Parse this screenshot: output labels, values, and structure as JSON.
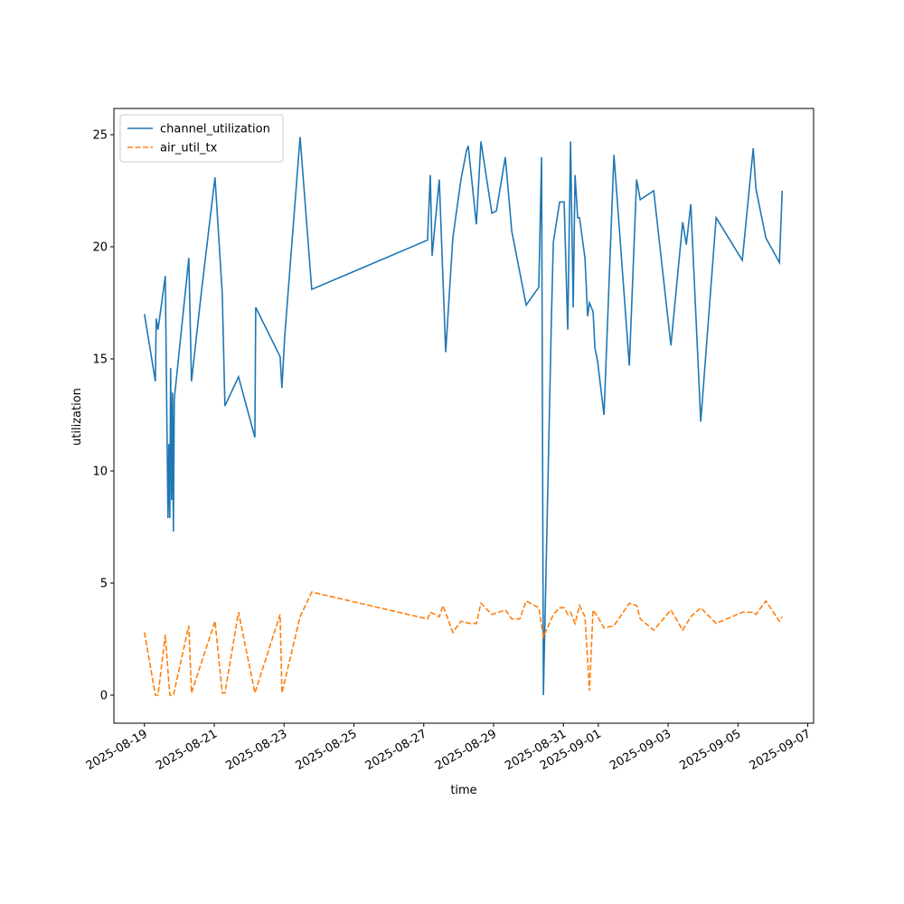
{
  "chart_data": {
    "type": "line",
    "xlabel": "time",
    "ylabel": "utilization",
    "xlim": [
      "2025-08-18T03:00",
      "2025-09-07T04:00"
    ],
    "xticks": [
      "2025-08-19",
      "2025-08-21",
      "2025-08-23",
      "2025-08-25",
      "2025-08-27",
      "2025-08-29",
      "2025-08-31",
      "2025-09-01",
      "2025-09-03",
      "2025-09-05",
      "2025-09-07"
    ],
    "ylim": [
      -1.25,
      26.17
    ],
    "yticks": [
      0,
      5,
      10,
      15,
      20,
      25
    ],
    "legend": "upper left",
    "series": [
      {
        "name": "channel_utilization",
        "color": "#1f77b4",
        "linestyle": "solid",
        "x": [
          "2025-08-19T00:00",
          "2025-08-19T07:30",
          "2025-08-19T08:05",
          "2025-08-19T09:20",
          "2025-08-19T14:20",
          "2025-08-19T16:10",
          "2025-08-19T16:50",
          "2025-08-19T17:25",
          "2025-08-19T18:00",
          "2025-08-19T18:40",
          "2025-08-19T19:15",
          "2025-08-19T19:55",
          "2025-08-19T20:30",
          "2025-08-20T06:30",
          "2025-08-20T08:20",
          "2025-08-20T15:10",
          "2025-08-21T00:30",
          "2025-08-21T05:30",
          "2025-08-21T07:20",
          "2025-08-21T16:40",
          "2025-08-22T03:55",
          "2025-08-22T04:30",
          "2025-08-22T21:15",
          "2025-08-22T22:30",
          "2025-08-23T00:25",
          "2025-08-23T11:00",
          "2025-08-23T19:00",
          "2025-08-27T02:35",
          "2025-08-27T04:30",
          "2025-08-27T05:45",
          "2025-08-27T10:40",
          "2025-08-27T15:05",
          "2025-08-27T20:00",
          "2025-08-28T01:35",
          "2025-08-28T05:25",
          "2025-08-28T06:35",
          "2025-08-28T12:10",
          "2025-08-28T15:20",
          "2025-08-28T22:50",
          "2025-08-29T01:55",
          "2025-08-29T08:05",
          "2025-08-29T12:30",
          "2025-08-29T22:25",
          "2025-08-30T07:05",
          "2025-08-30T09:00",
          "2025-08-30T10:15",
          "2025-08-30T15:50",
          "2025-08-30T17:05",
          "2025-08-30T21:25",
          "2025-08-31T00:30",
          "2025-08-31T03:00",
          "2025-08-31T04:55",
          "2025-08-31T06:45",
          "2025-08-31T08:00",
          "2025-08-31T09:50",
          "2025-08-31T11:05",
          "2025-08-31T14:50",
          "2025-08-31T16:40",
          "2025-08-31T17:55",
          "2025-08-31T20:25",
          "2025-08-31T21:40",
          "2025-08-31T23:30",
          "2025-09-01T03:55",
          "2025-09-01T10:45",
          "2025-09-01T21:20",
          "2025-09-02T02:20",
          "2025-09-02T04:50",
          "2025-09-02T14:05",
          "2025-09-03T01:55",
          "2025-09-03T10:00",
          "2025-09-03T12:30",
          "2025-09-03T15:35",
          "2025-09-03T22:25",
          "2025-09-04T09:00",
          "2025-09-05T03:00",
          "2025-09-05T10:30",
          "2025-09-05T12:20",
          "2025-09-05T19:10",
          "2025-09-06T04:30",
          "2025-09-06T06:25"
        ],
        "values": [
          17.0,
          14.0,
          16.8,
          16.3,
          18.7,
          7.9,
          11.2,
          7.9,
          14.6,
          8.7,
          13.5,
          7.3,
          13.2,
          19.5,
          14.0,
          18.0,
          23.1,
          17.9,
          12.9,
          14.2,
          11.5,
          17.3,
          15.1,
          13.7,
          16.0,
          24.9,
          18.1,
          20.3,
          23.2,
          19.6,
          23.0,
          15.3,
          20.4,
          23.0,
          24.3,
          24.5,
          21.0,
          24.7,
          21.5,
          21.6,
          24.0,
          20.7,
          17.4,
          18.2,
          24.0,
          0.0,
          17.0,
          20.2,
          22.0,
          22.0,
          16.3,
          24.7,
          17.3,
          23.2,
          21.3,
          21.3,
          19.5,
          16.9,
          17.5,
          17.1,
          15.5,
          14.9,
          12.5,
          24.1,
          14.7,
          23.0,
          22.1,
          22.5,
          15.6,
          21.1,
          20.1,
          21.9,
          12.2,
          21.3,
          19.4,
          24.4,
          22.6,
          20.4,
          19.3,
          22.5
        ]
      },
      {
        "name": "air_util_tx",
        "color": "#ff7f0e",
        "linestyle": "dashed",
        "x": [
          "2025-08-19T00:00",
          "2025-08-19T07:30",
          "2025-08-19T09:20",
          "2025-08-19T14:20",
          "2025-08-19T17:25",
          "2025-08-19T19:55",
          "2025-08-20T06:30",
          "2025-08-20T08:20",
          "2025-08-21T00:30",
          "2025-08-21T05:30",
          "2025-08-21T07:20",
          "2025-08-21T16:40",
          "2025-08-22T03:55",
          "2025-08-22T21:15",
          "2025-08-22T22:30",
          "2025-08-23T11:00",
          "2025-08-23T19:00",
          "2025-08-27T02:35",
          "2025-08-27T04:30",
          "2025-08-27T10:40",
          "2025-08-27T13:10",
          "2025-08-27T20:00",
          "2025-08-28T01:35",
          "2025-08-28T07:50",
          "2025-08-28T12:10",
          "2025-08-28T15:20",
          "2025-08-28T22:50",
          "2025-08-29T08:05",
          "2025-08-29T12:30",
          "2025-08-29T18:00",
          "2025-08-29T22:25",
          "2025-08-30T07:05",
          "2025-08-30T10:15",
          "2025-08-30T17:05",
          "2025-08-30T21:25",
          "2025-08-31T00:30",
          "2025-08-31T03:00",
          "2025-08-31T04:55",
          "2025-08-31T08:00",
          "2025-08-31T11:05",
          "2025-08-31T14:50",
          "2025-08-31T17:55",
          "2025-08-31T20:25",
          "2025-08-31T23:30",
          "2025-09-01T03:55",
          "2025-09-01T10:45",
          "2025-09-01T21:20",
          "2025-09-02T02:20",
          "2025-09-02T04:50",
          "2025-09-02T14:05",
          "2025-09-03T01:55",
          "2025-09-03T10:00",
          "2025-09-03T15:35",
          "2025-09-03T22:25",
          "2025-09-04T09:00",
          "2025-09-05T03:00",
          "2025-09-05T10:30",
          "2025-09-05T12:20",
          "2025-09-05T19:10",
          "2025-09-06T04:30",
          "2025-09-06T06:25"
        ],
        "values": [
          2.8,
          0.0,
          0.0,
          2.7,
          0.0,
          0.0,
          3.1,
          0.1,
          3.3,
          0.1,
          0.1,
          3.7,
          0.1,
          3.6,
          0.1,
          3.5,
          4.6,
          3.4,
          3.7,
          3.5,
          4.0,
          2.8,
          3.3,
          3.2,
          3.2,
          4.1,
          3.6,
          3.8,
          3.4,
          3.4,
          4.2,
          3.9,
          2.6,
          3.6,
          3.9,
          3.9,
          3.6,
          3.7,
          3.2,
          4.0,
          3.5,
          0.2,
          3.8,
          3.5,
          3.0,
          3.1,
          4.1,
          4.0,
          3.4,
          2.9,
          3.8,
          2.9,
          3.5,
          3.9,
          3.2,
          3.7,
          3.7,
          3.6,
          4.2,
          3.3,
          3.5
        ]
      }
    ]
  }
}
